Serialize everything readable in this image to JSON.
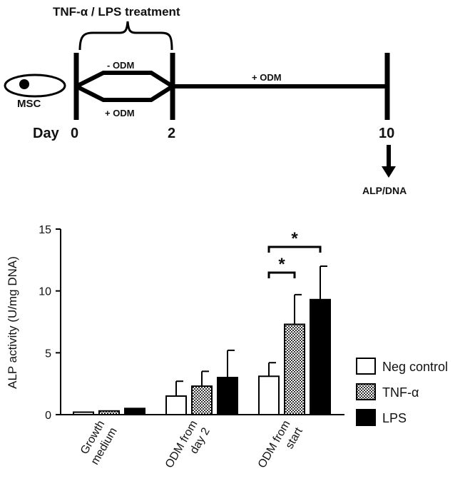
{
  "schematic": {
    "treatment_label": "TNF-α / LPS treatment",
    "cell_label": "MSC",
    "branch_top_label": "- ODM",
    "branch_bottom_label": "+ ODM",
    "long_segment_label": "+ ODM",
    "day_prefix": "Day",
    "day_ticks": [
      "0",
      "2",
      "10"
    ],
    "readout_label": "ALP/DNA"
  },
  "chart_data": {
    "type": "bar",
    "title": "",
    "xlabel": "",
    "ylabel": "ALP activity (U/mg DNA)",
    "ylim": [
      0,
      15
    ],
    "yticks": [
      "0",
      "5",
      "10",
      "15"
    ],
    "categories": [
      "Growth medium",
      "ODM from day 2",
      "ODM from start"
    ],
    "category_lines": [
      [
        "Growth",
        "medium"
      ],
      [
        "ODM from",
        "day 2"
      ],
      [
        "ODM from",
        "start"
      ]
    ],
    "series": [
      {
        "name": "Neg control",
        "fill": "#ffffff",
        "values": [
          0.2,
          1.5,
          3.1
        ],
        "errors": [
          0.0,
          1.2,
          1.1
        ]
      },
      {
        "name": "TNF-α",
        "fill": "pattern",
        "values": [
          0.3,
          2.3,
          7.3
        ],
        "errors": [
          0.0,
          1.2,
          2.4
        ]
      },
      {
        "name": "LPS",
        "fill": "#000000",
        "values": [
          0.5,
          3.0,
          9.3
        ],
        "errors": [
          0.0,
          2.2,
          2.7
        ]
      }
    ],
    "significance": [
      {
        "category": "ODM from start",
        "from_series": "Neg control",
        "to_series": "TNF-α",
        "label": "*"
      },
      {
        "category": "ODM from start",
        "from_series": "Neg control",
        "to_series": "LPS",
        "label": "*"
      }
    ],
    "legend_position": "right",
    "grid": false
  }
}
